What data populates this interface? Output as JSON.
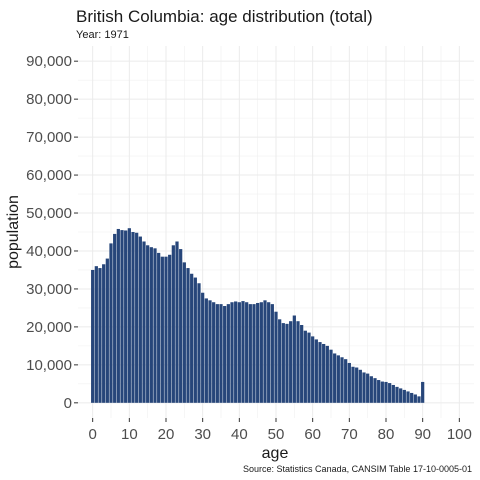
{
  "chart_data": {
    "type": "bar",
    "title": "British Columbia: age distribution (total)",
    "subtitle": "Year: 1971",
    "xlabel": "age",
    "ylabel": "population",
    "caption": "Source: Statistics Canada, CANSIM Table 17-10-0005-01",
    "xlim": [
      -4,
      104
    ],
    "ylim": [
      -4000,
      94000
    ],
    "x_ticks": [
      0,
      10,
      20,
      30,
      40,
      50,
      60,
      70,
      80,
      90,
      100
    ],
    "x_tick_labels": [
      "0",
      "10",
      "20",
      "30",
      "40",
      "50",
      "60",
      "70",
      "80",
      "90",
      "100"
    ],
    "y_ticks": [
      0,
      10000,
      20000,
      30000,
      40000,
      50000,
      60000,
      70000,
      80000,
      90000
    ],
    "y_tick_labels": [
      "0",
      "10,000",
      "20,000",
      "30,000",
      "40,000",
      "50,000",
      "60,000",
      "70,000",
      "80,000",
      "90,000"
    ],
    "bar_color": "#27467A",
    "grid": true,
    "x": [
      0,
      1,
      2,
      3,
      4,
      5,
      6,
      7,
      8,
      9,
      10,
      11,
      12,
      13,
      14,
      15,
      16,
      17,
      18,
      19,
      20,
      21,
      22,
      23,
      24,
      25,
      26,
      27,
      28,
      29,
      30,
      31,
      32,
      33,
      34,
      35,
      36,
      37,
      38,
      39,
      40,
      41,
      42,
      43,
      44,
      45,
      46,
      47,
      48,
      49,
      50,
      51,
      52,
      53,
      54,
      55,
      56,
      57,
      58,
      59,
      60,
      61,
      62,
      63,
      64,
      65,
      66,
      67,
      68,
      69,
      70,
      71,
      72,
      73,
      74,
      75,
      76,
      77,
      78,
      79,
      80,
      81,
      82,
      83,
      84,
      85,
      86,
      87,
      88,
      89,
      90
    ],
    "values": [
      35000,
      36000,
      35500,
      36500,
      38000,
      42000,
      44500,
      45800,
      45500,
      45400,
      46000,
      45000,
      44800,
      43800,
      42500,
      41500,
      41000,
      40700,
      39500,
      38500,
      38500,
      39000,
      41500,
      42500,
      40500,
      37000,
      35500,
      34000,
      33000,
      31500,
      29000,
      27500,
      27000,
      26500,
      26000,
      26000,
      25500,
      26000,
      26500,
      26700,
      26500,
      26800,
      26500,
      26000,
      26000,
      26300,
      26500,
      27000,
      26500,
      26000,
      24000,
      22000,
      21000,
      20800,
      21500,
      23000,
      21500,
      20500,
      19000,
      18500,
      17500,
      16700,
      16000,
      15500,
      15000,
      14000,
      13000,
      12500,
      12000,
      11500,
      10500,
      9500,
      9300,
      8700,
      8000,
      7700,
      7000,
      6500,
      6000,
      5600,
      5500,
      5200,
      4700,
      4200,
      3800,
      3400,
      3000,
      2600,
      2200,
      1700,
      5500
    ]
  }
}
